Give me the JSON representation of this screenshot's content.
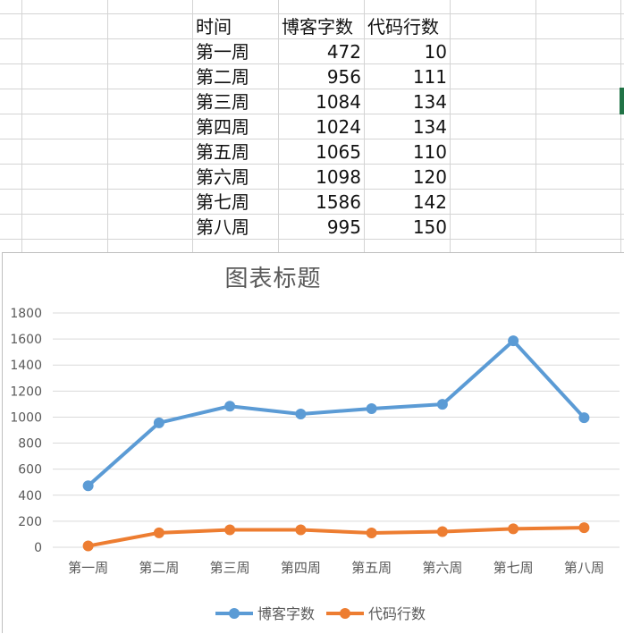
{
  "table": {
    "headers": [
      "时间",
      "博客字数",
      "代码行数"
    ],
    "rows": [
      [
        "第一周",
        "472",
        "10"
      ],
      [
        "第二周",
        "956",
        "111"
      ],
      [
        "第三周",
        "1084",
        "134"
      ],
      [
        "第四周",
        "1024",
        "134"
      ],
      [
        "第五周",
        "1065",
        "110"
      ],
      [
        "第六周",
        "1098",
        "120"
      ],
      [
        "第七周",
        "1586",
        "142"
      ],
      [
        "第八周",
        "995",
        "150"
      ]
    ]
  },
  "chart_data": {
    "type": "line",
    "title": "图表标题",
    "categories": [
      "第一周",
      "第二周",
      "第三周",
      "第四周",
      "第五周",
      "第六周",
      "第七周",
      "第八周"
    ],
    "series": [
      {
        "name": "博客字数",
        "values": [
          472,
          956,
          1084,
          1024,
          1065,
          1098,
          1586,
          995
        ],
        "color": "#5b9bd5"
      },
      {
        "name": "代码行数",
        "values": [
          10,
          111,
          134,
          134,
          110,
          120,
          142,
          150
        ],
        "color": "#ed7d31"
      }
    ],
    "ylim": [
      0,
      1800
    ],
    "yticks": [
      "0",
      "200",
      "400",
      "600",
      "800",
      "1000",
      "1200",
      "1400",
      "1600",
      "1800"
    ],
    "grid": true,
    "legend": "bottom",
    "xlabel": "",
    "ylabel": ""
  }
}
